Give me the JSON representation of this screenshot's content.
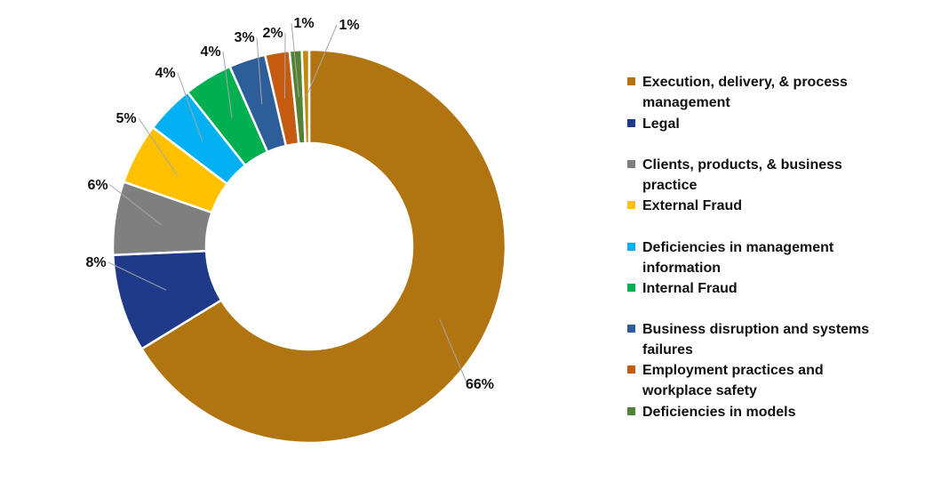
{
  "chart_data": {
    "type": "pie",
    "donut": true,
    "legend_position": "right",
    "slices": [
      {
        "name": "Execution, delivery, & process management",
        "value": 66,
        "label": "66%",
        "color": "#B07410"
      },
      {
        "name": "Legal",
        "value": 8,
        "label": "8%",
        "color": "#203A8A"
      },
      {
        "name": "Clients, products, & business practice",
        "value": 6,
        "label": "6%",
        "color": "#7F7F7F"
      },
      {
        "name": "External Fraud",
        "value": 5,
        "label": "5%",
        "color": "#FFC000"
      },
      {
        "name": "Deficiencies in management information",
        "value": 4,
        "label": "4%",
        "color": "#00B0F0"
      },
      {
        "name": "Internal Fraud",
        "value": 4,
        "label": "4%",
        "color": "#00B050"
      },
      {
        "name": "Business disruption and systems failures",
        "value": 3,
        "label": "3%",
        "color": "#2E5E9A"
      },
      {
        "name": "Employment practices and workplace safety",
        "value": 2,
        "label": "2%",
        "color": "#C55A11"
      },
      {
        "name": "Deficiencies in models",
        "value": 1,
        "label": "1%",
        "color": "#548235"
      },
      {
        "value": 0.6,
        "label": "1%",
        "color": "#C08A10"
      }
    ]
  }
}
